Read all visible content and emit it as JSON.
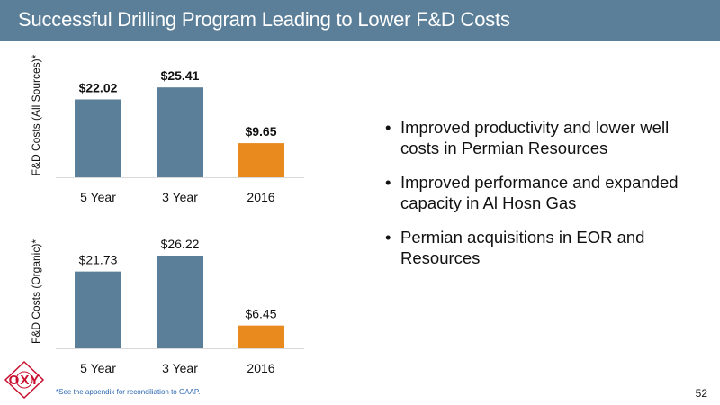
{
  "header": {
    "title": "Successful Drilling Program Leading to Lower F&D Costs"
  },
  "colors": {
    "header_bg": "#5b7f99",
    "bar_default": "#5b7f99",
    "bar_highlight": "#e98a1e",
    "footnote": "#2b66b0",
    "logo_red": "#c8102e"
  },
  "chart_data": [
    {
      "type": "bar",
      "title": "",
      "ylabel": "F&D Costs (All Sources)*",
      "xlabel": "",
      "categories": [
        "5 Year",
        "3 Year",
        "2016"
      ],
      "values": [
        22.02,
        25.41,
        9.65
      ],
      "labels": [
        "$22.02",
        "$25.41",
        "$9.65"
      ],
      "highlight_index": 2,
      "ylim": [
        0,
        28
      ],
      "label_weight": "bold",
      "grid": false
    },
    {
      "type": "bar",
      "title": "",
      "ylabel": "F&D Costs (Organic)*",
      "xlabel": "",
      "categories": [
        "5 Year",
        "3 Year",
        "2016"
      ],
      "values": [
        21.73,
        26.22,
        6.45
      ],
      "labels": [
        "$21.73",
        "$26.22",
        "$6.45"
      ],
      "highlight_index": 2,
      "ylim": [
        0,
        28
      ],
      "label_weight": "normal",
      "grid": false
    }
  ],
  "bullets": [
    "Improved productivity and lower well costs in Permian Resources",
    "Improved performance and expanded capacity in Al Hosn Gas",
    "Permian acquisitions in EOR and Resources"
  ],
  "footnote": "*See the appendix for reconciliation to GAAP.",
  "page_number": "52",
  "logo": {
    "text": "OXY"
  }
}
